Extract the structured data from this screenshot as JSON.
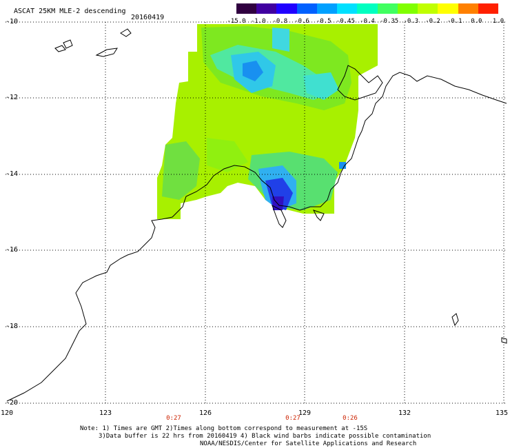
{
  "header": {
    "title": "ASCAT 25KM MLE-2 descending",
    "date": "20160419"
  },
  "colorbar": {
    "labels": [
      "-15.0",
      "-1.0",
      "-0.8",
      "-0.6",
      "-0.5",
      "-0.45",
      "-0.4",
      "-0.35",
      "-0.3",
      "-0.2",
      "-0.1",
      "0.0",
      "1.0"
    ],
    "colors": [
      "#300040",
      "#4000a0",
      "#2000ff",
      "#0060ff",
      "#00a0ff",
      "#00e0ff",
      "#00ffc0",
      "#40ff60",
      "#80ff00",
      "#c0ff00",
      "#ffff00",
      "#ff8000",
      "#ff2000"
    ]
  },
  "axes": {
    "lat_labels": [
      "-10",
      "-12",
      "-14",
      "-16",
      "-18",
      "-20"
    ],
    "lon_labels": [
      "120",
      "123",
      "126",
      "129",
      "132",
      "135"
    ]
  },
  "time_labels": [
    "0:27",
    "0:27",
    "0:26"
  ],
  "notes": {
    "line1": "Note: 1) Times are GMT 2)Times along bottom correspond to measurement at -15S",
    "line2": "3)Data buffer is 22 hrs from 20160419 4) Black wind barbs indicate possible contamination",
    "line3": "NOAA/NESDIS/Center for Satellite Applications and Research"
  }
}
